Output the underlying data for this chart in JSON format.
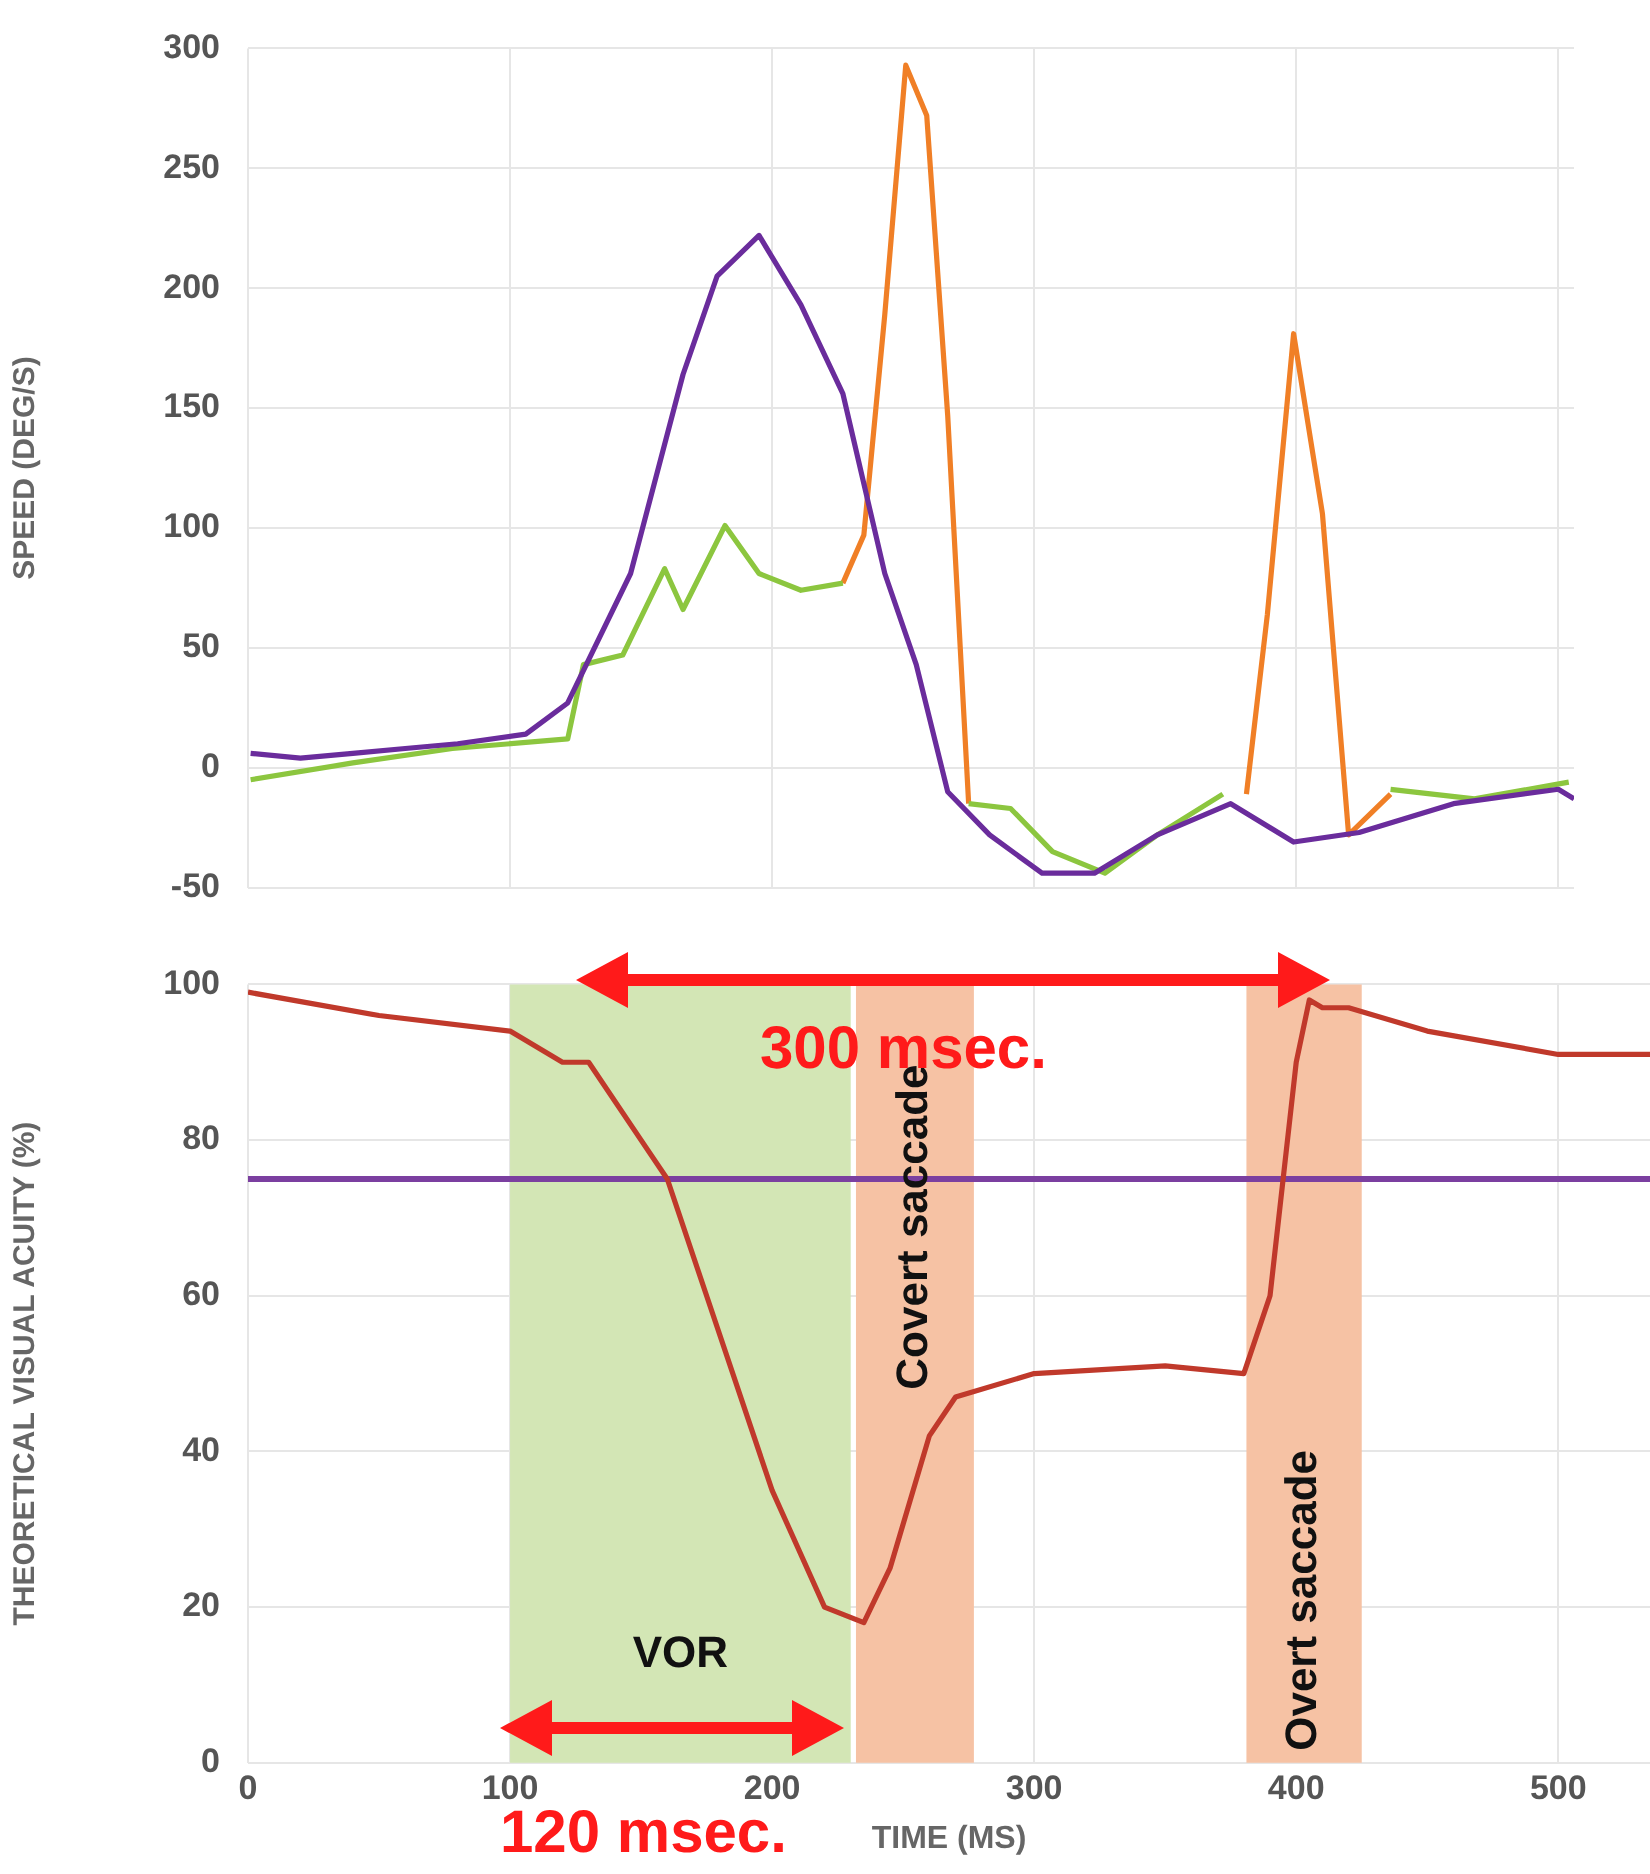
{
  "chart_data": [
    {
      "type": "line",
      "ylabel": "SPEED (DEG/S)",
      "xlim": [
        0,
        506
      ],
      "xticks": [
        0,
        100,
        200,
        300,
        400,
        500
      ],
      "ylim": [
        -50,
        300
      ],
      "yticks": [
        -50,
        0,
        50,
        100,
        150,
        200,
        250,
        300
      ],
      "tick_labels": "y",
      "grid": true,
      "series": [
        {
          "color": "#6a2c9c",
          "x": [
            1,
            20,
            40,
            60,
            80,
            106,
            122,
            146,
            166,
            179,
            195,
            211,
            227,
            243,
            255,
            267,
            283,
            303,
            323,
            347,
            375,
            399,
            424,
            460,
            500,
            506
          ],
          "values": [
            6,
            4,
            6,
            8,
            10,
            14,
            27,
            81,
            164,
            205,
            222,
            193,
            156,
            81,
            43,
            -10,
            -28,
            -44,
            -44,
            -28,
            -15,
            -31,
            -27,
            -15,
            -9,
            -13
          ]
        },
        {
          "color": "#8cc63f",
          "x": [
            1,
            40,
            78,
            122,
            128,
            143,
            159,
            166,
            182,
            195,
            211,
            227,
            251,
            275,
            291,
            307,
            327,
            347,
            372,
            381,
            420,
            436,
            468,
            504
          ],
          "values": [
            -5,
            2,
            8,
            12,
            43,
            47,
            83,
            66,
            101,
            81,
            74,
            77,
            null,
            -15,
            -17,
            -35,
            -44,
            -28,
            -11,
            null,
            null,
            -9,
            -13,
            -6
          ]
        },
        {
          "color": "#f07f26",
          "x": [
            227,
            235,
            243,
            251,
            259,
            267,
            275,
            330,
            381,
            389,
            399,
            410,
            420,
            436
          ],
          "values": [
            77,
            97,
            189,
            293,
            272,
            147,
            -15,
            null,
            -11,
            64,
            181,
            106,
            -28,
            -11
          ]
        }
      ]
    },
    {
      "type": "line",
      "xlabel": "TIME (MS)",
      "ylabel": "THEORETICAL VISUAL ACUITY (%)",
      "xlim": [
        0,
        535
      ],
      "xticks": [
        0,
        100,
        200,
        300,
        400,
        500
      ],
      "ylim": [
        0,
        100
      ],
      "yticks": [
        0,
        20,
        40,
        60,
        80,
        100
      ],
      "grid": true,
      "series": [
        {
          "color": "#c0392b",
          "x": [
            0,
            50,
            100,
            120,
            130,
            150,
            160,
            175,
            200,
            220,
            235,
            245,
            260,
            270,
            300,
            350,
            380,
            390,
            400,
            405,
            410,
            420,
            450,
            500,
            535
          ],
          "values": [
            99,
            96,
            94,
            90,
            90,
            80,
            75,
            60,
            35,
            20,
            18,
            25,
            42,
            47,
            50,
            51,
            50,
            60,
            90,
            98,
            97,
            97,
            94,
            91,
            91
          ]
        }
      ],
      "ref_lines": [
        {
          "axis": "y",
          "value": 75,
          "color": "#7b3fa0"
        }
      ],
      "bands": [
        {
          "axis": "x",
          "from": 100,
          "to": 230,
          "label": "VOR",
          "color": "#d3e6b5"
        },
        {
          "axis": "x",
          "from": 232,
          "to": 277,
          "label": "Covert saccade",
          "color": "#f6c2a4"
        },
        {
          "axis": "x",
          "from": 381,
          "to": 425,
          "label": "Overt saccade",
          "color": "#f6c2a4"
        }
      ],
      "annotations": [
        "300 msec.",
        "120 msec."
      ]
    }
  ]
}
